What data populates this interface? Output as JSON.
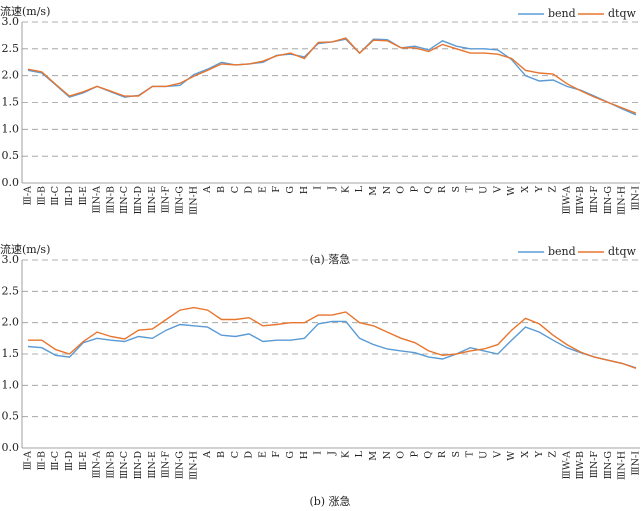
{
  "chart_data": [
    {
      "type": "line",
      "ylabel": "流速(m/s)",
      "caption": "(a) 落急",
      "categories": [
        "Ⅲ-A",
        "Ⅲ-B",
        "Ⅲ-C",
        "Ⅲ-D",
        "Ⅲ-E",
        "ⅢN-A",
        "ⅢN-B",
        "ⅢN-C",
        "ⅢN-D",
        "ⅢN-E",
        "ⅢN-F",
        "ⅢN-G",
        "ⅢN-H",
        "A",
        "B",
        "C",
        "D",
        "E",
        "F",
        "G",
        "H",
        "I",
        "J",
        "K",
        "L",
        "M",
        "N",
        "O",
        "P",
        "Q",
        "R",
        "S",
        "T",
        "U",
        "V",
        "W",
        "X",
        "Y",
        "Z",
        "ⅢW-A",
        "ⅢW-B",
        "ⅢN-F",
        "ⅢN-G",
        "ⅢN-H",
        "ⅢN-I"
      ],
      "series": [
        {
          "name": "bend",
          "color": "#5b9bd5",
          "values": [
            2.1,
            2.05,
            1.83,
            1.6,
            1.68,
            1.8,
            1.7,
            1.6,
            1.63,
            1.8,
            1.8,
            1.82,
            2.02,
            2.12,
            2.25,
            2.2,
            2.22,
            2.25,
            2.38,
            2.4,
            2.35,
            2.6,
            2.63,
            2.68,
            2.42,
            2.68,
            2.67,
            2.52,
            2.55,
            2.48,
            2.65,
            2.55,
            2.5,
            2.5,
            2.48,
            2.3,
            2.0,
            1.9,
            1.92,
            1.8,
            1.73,
            1.62,
            1.5,
            1.38,
            1.27
          ]
        },
        {
          "name": "dtqw",
          "color": "#e8752e",
          "values": [
            2.12,
            2.07,
            1.84,
            1.62,
            1.7,
            1.8,
            1.71,
            1.62,
            1.62,
            1.8,
            1.8,
            1.86,
            1.99,
            2.1,
            2.22,
            2.2,
            2.22,
            2.27,
            2.37,
            2.42,
            2.32,
            2.62,
            2.63,
            2.7,
            2.42,
            2.66,
            2.65,
            2.52,
            2.52,
            2.45,
            2.58,
            2.5,
            2.42,
            2.42,
            2.4,
            2.32,
            2.1,
            2.05,
            2.03,
            1.85,
            1.72,
            1.6,
            1.5,
            1.4,
            1.3
          ]
        }
      ],
      "ylim": [
        0,
        3
      ],
      "yticks": [
        {
          "value": 0,
          "label": "0.0"
        },
        {
          "value": 0.5,
          "label": "0.5"
        },
        {
          "value": 1,
          "label": "1.0"
        },
        {
          "value": 1.5,
          "label": "1.5"
        },
        {
          "value": 2,
          "label": "2.0"
        },
        {
          "value": 2.5,
          "label": "2.5"
        },
        {
          "value": 3,
          "label": "3.0"
        }
      ],
      "grid": true,
      "legend": "top-right"
    },
    {
      "type": "line",
      "ylabel": "流速(m/s)",
      "caption": "(b) 涨急",
      "categories": [
        "Ⅲ-A",
        "Ⅲ-B",
        "Ⅲ-C",
        "Ⅲ-D",
        "Ⅲ-E",
        "ⅢN-A",
        "ⅢN-B",
        "ⅢN-C",
        "ⅢN-D",
        "ⅢN-E",
        "ⅢN-F",
        "ⅢN-G",
        "ⅢN-H",
        "A",
        "B",
        "C",
        "D",
        "E",
        "F",
        "G",
        "H",
        "I",
        "J",
        "K",
        "L",
        "M",
        "N",
        "O",
        "P",
        "Q",
        "R",
        "S",
        "T",
        "U",
        "V",
        "W",
        "X",
        "Y",
        "Z",
        "ⅢW-A",
        "ⅢW-B",
        "ⅢN-F",
        "ⅢN-G",
        "ⅢN-H",
        "ⅢN-I"
      ],
      "series": [
        {
          "name": "bend",
          "color": "#5b9bd5",
          "values": [
            1.62,
            1.6,
            1.48,
            1.45,
            1.68,
            1.75,
            1.72,
            1.7,
            1.78,
            1.75,
            1.88,
            1.97,
            1.95,
            1.93,
            1.8,
            1.78,
            1.82,
            1.7,
            1.72,
            1.72,
            1.75,
            1.98,
            2.02,
            2.02,
            1.75,
            1.65,
            1.58,
            1.55,
            1.52,
            1.45,
            1.42,
            1.5,
            1.6,
            1.55,
            1.5,
            1.72,
            1.93,
            1.85,
            1.72,
            1.6,
            1.52,
            1.45,
            1.4,
            1.35,
            1.28
          ]
        },
        {
          "name": "dtqw",
          "color": "#e8752e",
          "values": [
            1.72,
            1.72,
            1.57,
            1.5,
            1.7,
            1.85,
            1.78,
            1.74,
            1.88,
            1.9,
            2.05,
            2.2,
            2.24,
            2.2,
            2.05,
            2.05,
            2.08,
            1.95,
            1.97,
            2.0,
            2.0,
            2.12,
            2.12,
            2.17,
            2.0,
            1.95,
            1.85,
            1.75,
            1.68,
            1.55,
            1.48,
            1.5,
            1.55,
            1.58,
            1.65,
            1.88,
            2.07,
            1.98,
            1.8,
            1.65,
            1.53,
            1.45,
            1.4,
            1.35,
            1.27
          ]
        }
      ],
      "ylim": [
        0,
        3
      ],
      "yticks": [
        {
          "value": 0,
          "label": "0.0"
        },
        {
          "value": 0.5,
          "label": "0.5"
        },
        {
          "value": 1,
          "label": "1.0"
        },
        {
          "value": 1.5,
          "label": "1.5"
        },
        {
          "value": 2,
          "label": "2.0"
        },
        {
          "value": 2.5,
          "label": "2.5"
        },
        {
          "value": 3,
          "label": "3.0"
        }
      ],
      "grid": true,
      "legend": "top-right"
    }
  ]
}
